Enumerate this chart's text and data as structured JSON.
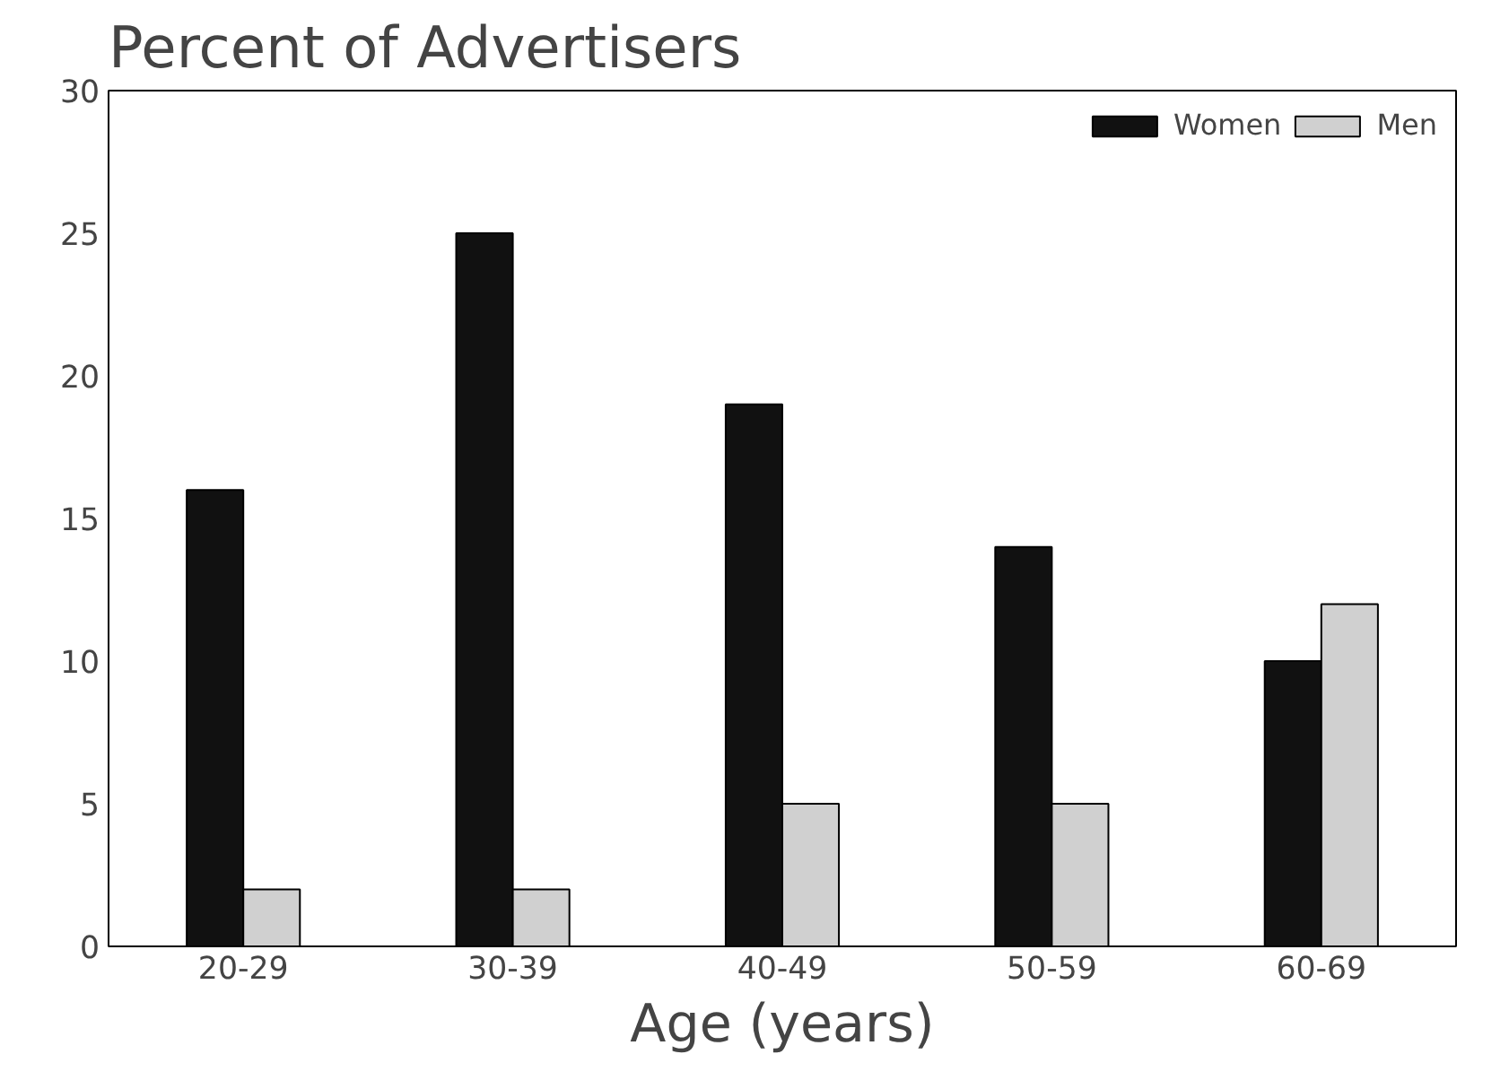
{
  "chart_data": {
    "type": "bar",
    "title": "Percent of Advertisers",
    "xlabel": "Age (years)",
    "categories": [
      "20-29",
      "30-39",
      "40-49",
      "50-59",
      "60-69"
    ],
    "series": [
      {
        "name": "Women",
        "color": "#111111",
        "values": [
          16,
          25,
          19,
          14,
          10
        ]
      },
      {
        "name": "Men",
        "color": "#d0d0d0",
        "values": [
          2,
          2,
          5,
          5,
          12
        ]
      }
    ],
    "ylim": [
      0,
      30
    ],
    "yticks": [
      0,
      5,
      10,
      15,
      20,
      25,
      30
    ],
    "grid": false,
    "legend": "top right"
  }
}
